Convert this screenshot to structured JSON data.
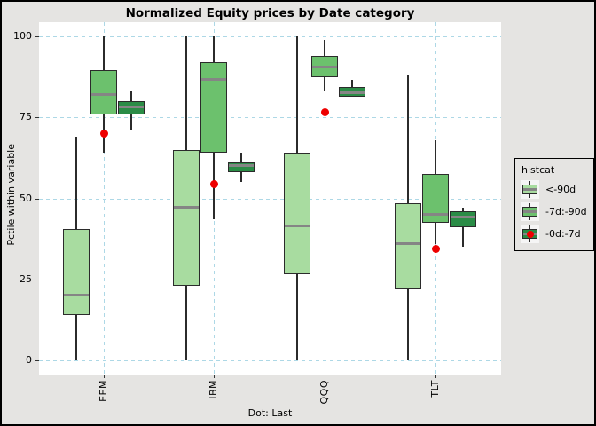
{
  "colors": {
    "figure_bg": "#e5e4e2",
    "panel_bg": "#ffffff",
    "grid": "#add8e6",
    "box_border": "#2b2b2b",
    "whisker": "#2b2b2b",
    "median": "#858585",
    "box_light_green": "#a8dca0",
    "box_medium_green": "#6cc16d",
    "box_dark_green": "#2a8c46",
    "dot_red": "#ee0000",
    "legend_key_bg": "#f5f5f5",
    "text": "#000000"
  },
  "chart_data": {
    "type": "grouped_boxplot",
    "title": "Normalized Equity prices by Date category",
    "ylabel": "Pctile within variable",
    "caption": "Dot: Last",
    "categories": [
      "EEM",
      "IBM",
      "QQQ",
      "TLT"
    ],
    "y_ticks": [
      0,
      25,
      50,
      75,
      100
    ],
    "ylim": [
      0,
      100
    ],
    "grid": "dashed light-blue horizontal lines at y ticks and vertical lines at category centers",
    "legend": {
      "title": "histcat",
      "position": "right",
      "items": [
        {
          "label": "<-90d",
          "color": "#a8dca0",
          "dot": false
        },
        {
          "label": "-7d:-90d",
          "color": "#6cc16d",
          "dot": false
        },
        {
          "label": "-0d:-7d",
          "color": "#2a8c46",
          "dot": true
        }
      ]
    },
    "series": [
      {
        "name": "<-90d",
        "color": "#a8dca0",
        "boxes": [
          {
            "whisker_low": 0,
            "q1": 14,
            "median": 20,
            "q3": 40.5,
            "whisker_high": 69
          },
          {
            "whisker_low": 0,
            "q1": 23,
            "median": 47,
            "q3": 65,
            "whisker_high": 100
          },
          {
            "whisker_low": 0,
            "q1": 26.5,
            "median": 41.5,
            "q3": 64,
            "whisker_high": 100
          },
          {
            "whisker_low": 0,
            "q1": 22,
            "median": 36,
            "q3": 48.5,
            "whisker_high": 88
          }
        ]
      },
      {
        "name": "-7d:-90d",
        "color": "#6cc16d",
        "boxes": [
          {
            "whisker_low": 64,
            "q1": 76,
            "median": 82,
            "q3": 89.5,
            "whisker_high": 100
          },
          {
            "whisker_low": 43.5,
            "q1": 64,
            "median": 86.5,
            "q3": 92,
            "whisker_high": 100
          },
          {
            "whisker_low": 83,
            "q1": 87.5,
            "median": 90.5,
            "q3": 94,
            "whisker_high": 99
          },
          {
            "whisker_low": 36,
            "q1": 42.5,
            "median": 45,
            "q3": 57.5,
            "whisker_high": 68
          }
        ]
      },
      {
        "name": "-0d:-7d",
        "color": "#2a8c46",
        "boxes": [
          {
            "whisker_low": 71,
            "q1": 76,
            "median": 78,
            "q3": 80,
            "whisker_high": 83
          },
          {
            "whisker_low": 55,
            "q1": 58,
            "median": 60,
            "q3": 61,
            "whisker_high": 64
          },
          {
            "whisker_low": 81.5,
            "q1": 81.5,
            "median": 82.5,
            "q3": 84.5,
            "whisker_high": 86.5
          },
          {
            "whisker_low": 35,
            "q1": 41,
            "median": 44,
            "q3": 46,
            "whisker_high": 47
          }
        ]
      }
    ],
    "last_dots": {
      "name": "Last",
      "values": [
        70,
        54.5,
        76.5,
        34.5
      ]
    }
  }
}
